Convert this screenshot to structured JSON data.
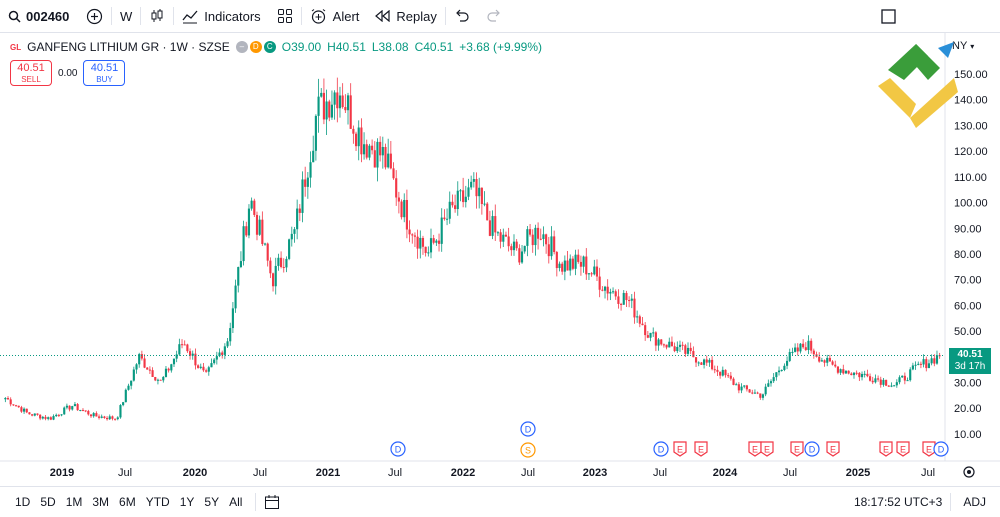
{
  "toolbar": {
    "symbol": "002460",
    "interval": "W",
    "indicators_label": "Indicators",
    "alert_label": "Alert",
    "replay_label": "Replay"
  },
  "legend": {
    "title": "GANFENG LITHIUM GR · 1W · SZSE",
    "open": "O39.00",
    "high": "H40.51",
    "low": "L38.08",
    "close": "C40.51",
    "change": "+3.68 (+9.99%)",
    "badges": [
      "D",
      "C"
    ]
  },
  "trade": {
    "sell_price": "40.51",
    "sell_label": "SELL",
    "spread": "0.00",
    "buy_price": "40.51",
    "buy_label": "BUY"
  },
  "price_scale": {
    "currency": "NY",
    "ticks": [
      "150.00",
      "140.00",
      "130.00",
      "120.00",
      "110.00",
      "100.00",
      "90.00",
      "80.00",
      "70.00",
      "60.00",
      "50.00",
      "40.00",
      "30.00",
      "20.00",
      "10.00"
    ],
    "last_price": "40.51",
    "countdown": "3d 17h"
  },
  "time_axis": [
    "2019",
    "Jul",
    "2020",
    "Jul",
    "2021",
    "Jul",
    "2022",
    "Jul",
    "2023",
    "Jul",
    "2024",
    "Jul",
    "2025",
    "Jul"
  ],
  "events": [
    "D",
    "D",
    "S",
    "D",
    "E",
    "E",
    "E",
    "E",
    "E",
    "D",
    "E",
    "E",
    "E",
    "E",
    "D",
    "E"
  ],
  "bottombar": {
    "ranges": [
      "1D",
      "5D",
      "1M",
      "3M",
      "6M",
      "YTD",
      "1Y",
      "5Y",
      "All"
    ],
    "time": "18:17:52 UTC+3",
    "adj": "ADJ"
  },
  "colors": {
    "up": "#089981",
    "down": "#f23645",
    "dividend": "#2962ff",
    "split": "#ff9800"
  },
  "chart_data": {
    "type": "candlestick",
    "title": "GANFENG LITHIUM GR · 1W · SZSE",
    "ylim": [
      0,
      155
    ],
    "x": [
      "2018-11",
      "2019-01",
      "2019-04",
      "2019-07",
      "2019-10",
      "2020-01",
      "2020-03",
      "2020-05",
      "2020-07",
      "2020-09",
      "2020-11",
      "2021-01",
      "2021-03",
      "2021-05",
      "2021-07",
      "2021-08",
      "2021-10",
      "2021-12",
      "2022-01",
      "2022-03",
      "2022-05",
      "2022-06",
      "2022-07",
      "2022-09",
      "2022-11",
      "2023-01",
      "2023-03",
      "2023-05",
      "2023-07",
      "2023-09",
      "2023-11",
      "2024-01",
      "2024-03",
      "2024-05",
      "2024-07",
      "2024-09",
      "2024-10",
      "2024-11",
      "2025-01",
      "2025-03",
      "2025-05",
      "2025-07",
      "2025-08"
    ],
    "close": [
      24,
      18,
      16,
      21,
      17,
      16,
      40,
      30,
      46,
      32,
      47,
      102,
      70,
      88,
      135,
      145,
      125,
      118,
      95,
      80,
      96,
      105,
      88,
      80,
      90,
      76,
      76,
      67,
      62,
      48,
      44,
      40,
      35,
      28,
      25,
      38,
      45,
      37,
      34,
      32,
      29,
      36,
      40.51
    ]
  }
}
